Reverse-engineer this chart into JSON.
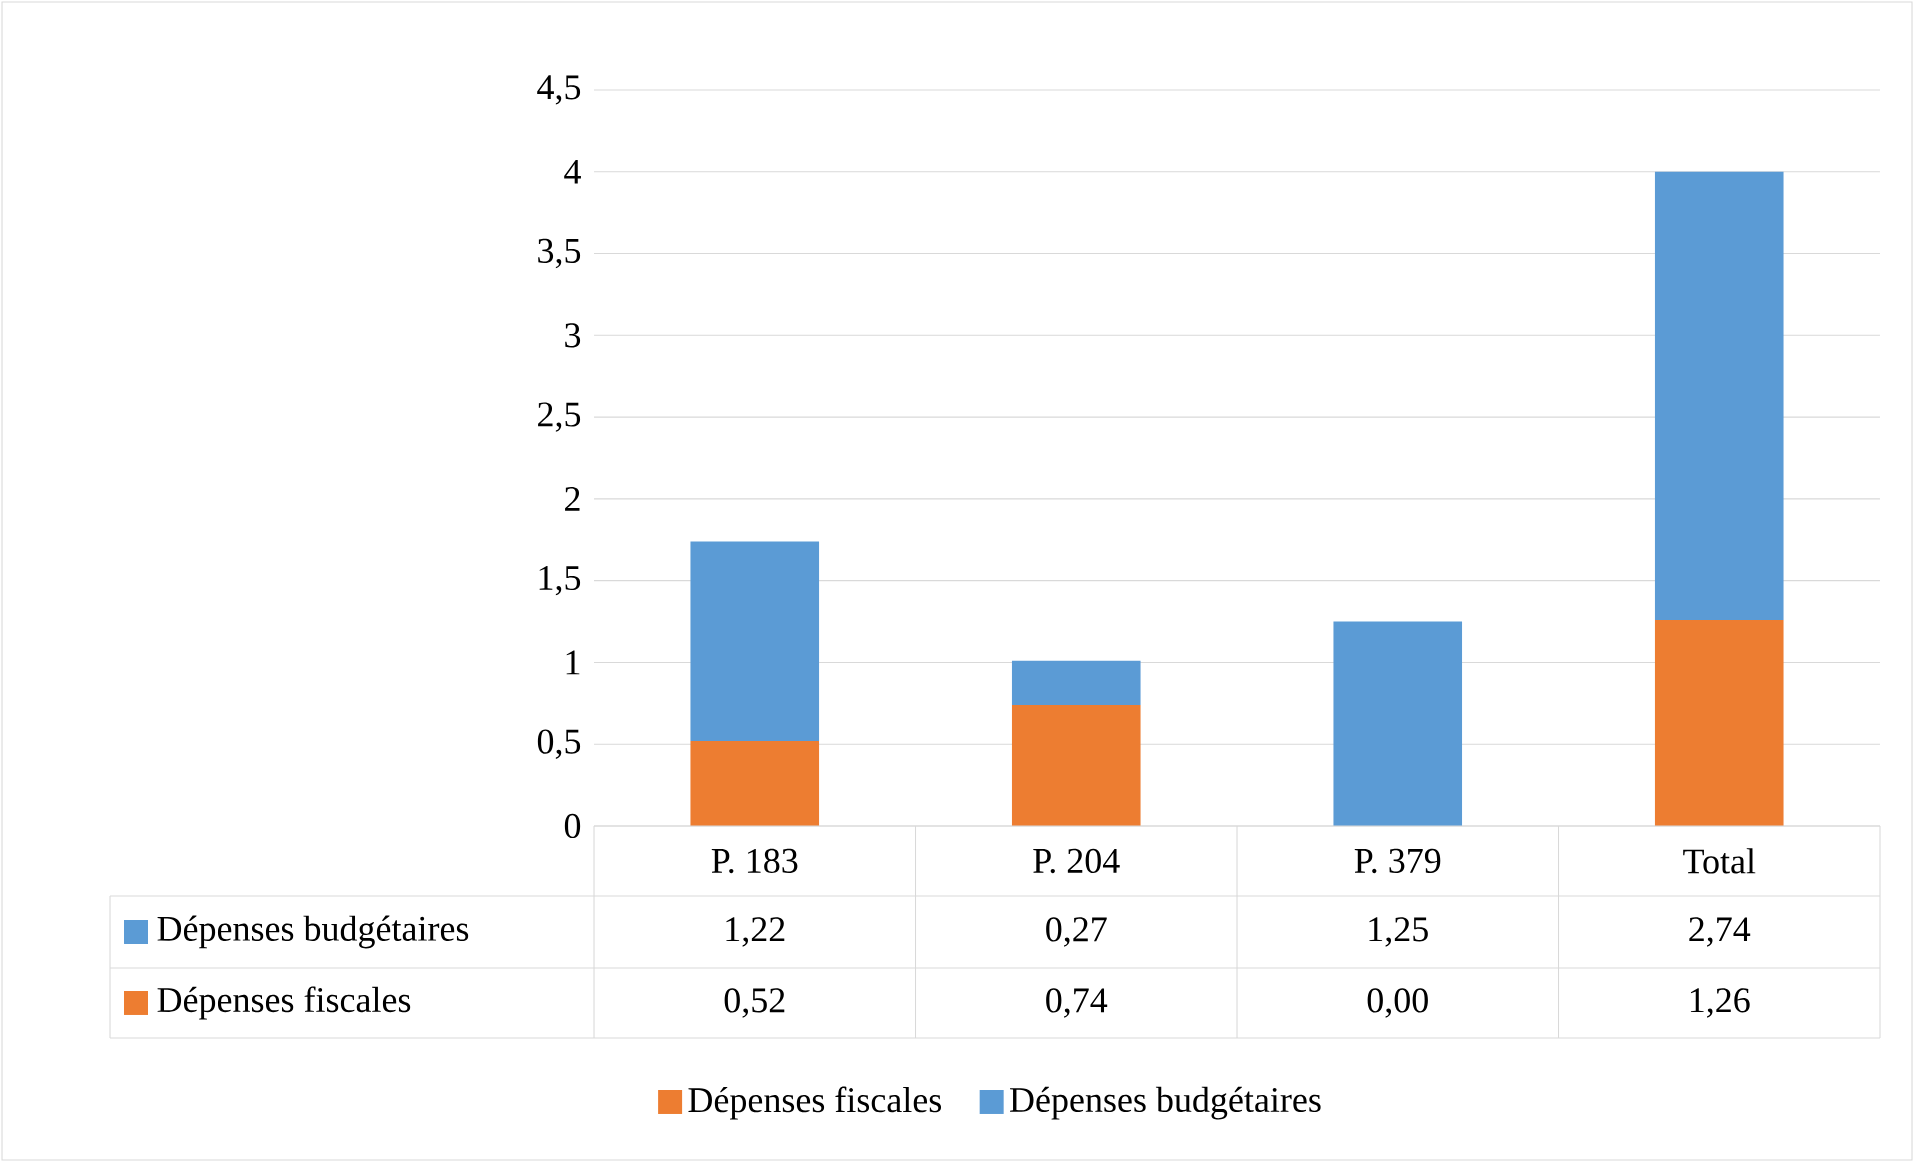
{
  "chart_data": {
    "type": "bar",
    "stacked": true,
    "categories": [
      "P. 183",
      "P. 204",
      "P. 379",
      "Total"
    ],
    "series": [
      {
        "name": "Dépenses fiscales",
        "color": "#ed7d31",
        "values": [
          0.52,
          0.74,
          0.0,
          1.26
        ],
        "value_labels": [
          "0,52",
          "0,74",
          "0,00",
          "1,26"
        ]
      },
      {
        "name": "Dépenses budgétaires",
        "color": "#5b9bd5",
        "values": [
          1.22,
          0.27,
          1.25,
          2.74
        ],
        "value_labels": [
          "1,22",
          "0,27",
          "1,25",
          "2,74"
        ]
      }
    ],
    "ylim": [
      0,
      4.5
    ],
    "yticks": [
      0,
      {
        "value": 0.5,
        "label": "0,5"
      },
      1,
      {
        "value": 1.5,
        "label": "1,5"
      },
      2,
      {
        "value": 2.5,
        "label": "2,5"
      },
      3,
      {
        "value": 3.5,
        "label": "3,5"
      },
      4,
      {
        "value": 4.5,
        "label": "4,5"
      }
    ],
    "grid": "y",
    "legend": "bottom"
  }
}
